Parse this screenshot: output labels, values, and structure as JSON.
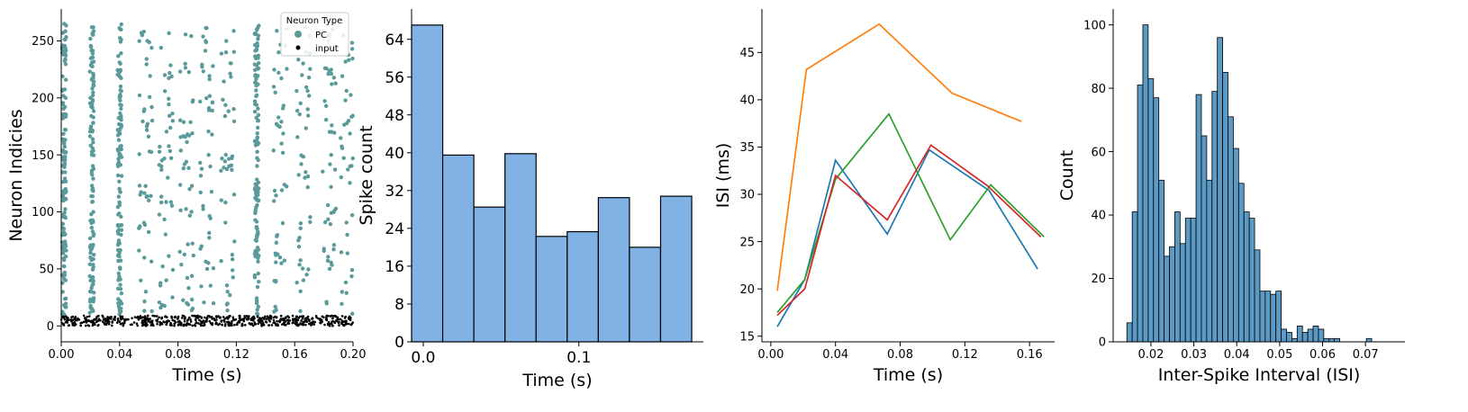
{
  "chart_data": [
    {
      "type": "scatter",
      "xlabel": "Time (s)",
      "ylabel": "Neuron Indicies",
      "xlim": [
        0,
        0.2
      ],
      "ylim": [
        -14,
        278
      ],
      "xticks": [
        "0.00",
        "0.04",
        "0.08",
        "0.12",
        "0.16",
        "0.20"
      ],
      "xtick_values": [
        0,
        0.04,
        0.08,
        0.12,
        0.16,
        0.2
      ],
      "yticks": [
        "0",
        "50",
        "100",
        "150",
        "200",
        "250"
      ],
      "ytick_values": [
        0,
        50,
        100,
        150,
        200,
        250
      ],
      "legend": {
        "title": "Neuron Type",
        "placement": "top-right",
        "entries": [
          {
            "label": "PC",
            "color": "#5a9a9b"
          },
          {
            "label": "input",
            "color": "#000000"
          }
        ]
      },
      "series": [
        {
          "name": "PC",
          "color": "#5a9a9b",
          "neuron_range": [
            10,
            265
          ],
          "burst_times": [
            0.002,
            0.021,
            0.04,
            0.058,
            0.072,
            0.086,
            0.1,
            0.114,
            0.134,
            0.15,
            0.166,
            0.184,
            0.196
          ],
          "points": [
            [
              0.002,
              10
            ],
            [
              0.003,
              40
            ],
            [
              0.002,
              80
            ],
            [
              0.003,
              120
            ],
            [
              0.002,
              160
            ],
            [
              0.003,
              200
            ],
            [
              0.002,
              240
            ],
            [
              0.002,
              265
            ],
            [
              0.021,
              15
            ],
            [
              0.02,
              60
            ],
            [
              0.022,
              100
            ],
            [
              0.021,
              150
            ],
            [
              0.02,
              200
            ],
            [
              0.021,
              262
            ],
            [
              0.04,
              20
            ],
            [
              0.041,
              80
            ],
            [
              0.039,
              140
            ],
            [
              0.04,
              200
            ],
            [
              0.041,
              260
            ],
            [
              0.058,
              30
            ],
            [
              0.06,
              110
            ],
            [
              0.057,
              190
            ],
            [
              0.059,
              250
            ],
            [
              0.072,
              40
            ],
            [
              0.073,
              130
            ],
            [
              0.071,
              220
            ],
            [
              0.086,
              20
            ],
            [
              0.088,
              120
            ],
            [
              0.085,
              230
            ],
            [
              0.1,
              50
            ],
            [
              0.101,
              150
            ],
            [
              0.099,
              250
            ],
            [
              0.114,
              30
            ],
            [
              0.115,
              140
            ],
            [
              0.113,
              240
            ],
            [
              0.134,
              20
            ],
            [
              0.133,
              100
            ],
            [
              0.135,
              180
            ],
            [
              0.134,
              260
            ],
            [
              0.15,
              60
            ],
            [
              0.151,
              160
            ],
            [
              0.149,
              240
            ],
            [
              0.166,
              40
            ],
            [
              0.167,
              130
            ],
            [
              0.165,
              220
            ],
            [
              0.184,
              50
            ],
            [
              0.185,
              150
            ],
            [
              0.183,
              250
            ],
            [
              0.196,
              80
            ],
            [
              0.197,
              180
            ]
          ]
        },
        {
          "name": "input",
          "color": "#000000",
          "neuron_range": [
            0,
            10
          ],
          "points": [
            [
              0.01,
              5
            ],
            [
              0.05,
              3
            ],
            [
              0.1,
              7
            ],
            [
              0.15,
              4
            ],
            [
              0.19,
              6
            ]
          ]
        }
      ]
    },
    {
      "type": "bar",
      "xlabel": "Time (s)",
      "ylabel": "Spike count",
      "xlim": [
        -0.0075,
        0.18
      ],
      "ylim": [
        0,
        70.4
      ],
      "xticks": [
        "0.0",
        "0.1"
      ],
      "xtick_values": [
        0,
        0.1
      ],
      "yticks": [
        "0",
        "8",
        "16",
        "24",
        "32",
        "40",
        "48",
        "56",
        "64"
      ],
      "ytick_values": [
        0,
        8,
        16,
        24,
        32,
        40,
        48,
        56,
        64
      ],
      "bin_edges": [
        -0.0075,
        0.0125,
        0.0325,
        0.0525,
        0.0725,
        0.0925,
        0.1125,
        0.1325,
        0.1525,
        0.1725
      ],
      "values": [
        67,
        39.5,
        28.5,
        39.8,
        22.3,
        23.3,
        30.5,
        20,
        30.8
      ],
      "color": "#80b2e5",
      "edgecolor": "#000000"
    },
    {
      "type": "line",
      "xlabel": "Time (s)",
      "ylabel": "ISI (ms)",
      "xlim": [
        -0.0055,
        0.1755
      ],
      "ylim": [
        14.4,
        49.6
      ],
      "xticks": [
        "0.00",
        "0.04",
        "0.08",
        "0.12",
        "0.16"
      ],
      "xtick_values": [
        0,
        0.04,
        0.08,
        0.12,
        0.16
      ],
      "yticks": [
        "15",
        "20",
        "25",
        "30",
        "35",
        "40",
        "45"
      ],
      "ytick_values": [
        15,
        20,
        25,
        30,
        35,
        40,
        45
      ],
      "series": [
        {
          "color": "#1f77b4",
          "x": [
            0.004,
            0.021,
            0.04,
            0.072,
            0.098,
            0.135,
            0.165
          ],
          "y": [
            16,
            21,
            33.6,
            25.8,
            34.7,
            30.4,
            22.1
          ]
        },
        {
          "color": "#ff7f0e",
          "x": [
            0.004,
            0.022,
            0.067,
            0.112,
            0.155
          ],
          "y": [
            19.8,
            43.2,
            48,
            40.7,
            37.7
          ]
        },
        {
          "color": "#2ca02c",
          "x": [
            0.004,
            0.021,
            0.04,
            0.073,
            0.111,
            0.136,
            0.169
          ],
          "y": [
            17.5,
            21,
            31.6,
            38.5,
            25.2,
            31,
            25.5
          ]
        },
        {
          "color": "#d62728",
          "x": [
            0.004,
            0.021,
            0.04,
            0.072,
            0.099,
            0.134,
            0.167
          ],
          "y": [
            17.2,
            20,
            32,
            27.3,
            35.2,
            30.9,
            25.5
          ]
        }
      ]
    },
    {
      "type": "bar",
      "xlabel": "Inter-Spike Interval (ISI)",
      "ylabel": "Count",
      "xlim": [
        0.0112,
        0.0792
      ],
      "ylim": [
        0,
        105
      ],
      "xticks": [
        "0.02",
        "0.03",
        "0.04",
        "0.05",
        "0.06",
        "0.07"
      ],
      "xtick_values": [
        0.02,
        0.03,
        0.04,
        0.05,
        0.06,
        0.07
      ],
      "yticks": [
        "0",
        "20",
        "40",
        "60",
        "80",
        "100"
      ],
      "ytick_values": [
        0,
        20,
        40,
        60,
        80,
        100
      ],
      "bin_start": 0.0144,
      "bin_width": 0.00124,
      "values": [
        6,
        41,
        81,
        100,
        83,
        77,
        51,
        27,
        30,
        41,
        31,
        39,
        39,
        78,
        65,
        51,
        79,
        96,
        85,
        71,
        61,
        50,
        41,
        39,
        29,
        16,
        16,
        15,
        16,
        4,
        3,
        1,
        5,
        3,
        4,
        5,
        4,
        1,
        1,
        1,
        0,
        0,
        0,
        0,
        0,
        1
      ],
      "color": "#5b9ac4",
      "edgecolor": "#000000"
    }
  ]
}
